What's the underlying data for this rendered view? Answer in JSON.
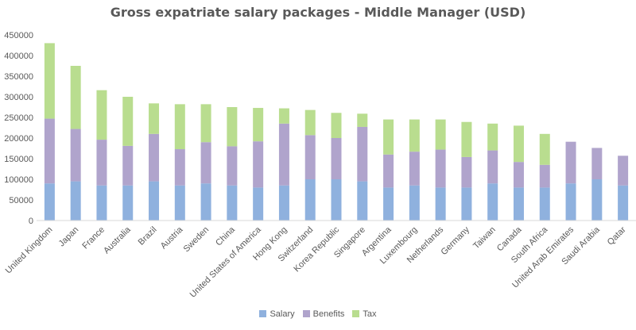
{
  "chart_data": {
    "type": "bar",
    "stacked": true,
    "title": "Gross expatriate salary packages - Middle Manager (USD)",
    "xlabel": "",
    "ylabel": "",
    "ylim": [
      0,
      450000
    ],
    "ytick_step": 50000,
    "grid": false,
    "legend_position": "bottom",
    "categories": [
      "United Kingdom",
      "Japan",
      "France",
      "Australia",
      "Brazil",
      "Austria",
      "Sweden",
      "China",
      "United States of America",
      "Hong Kong",
      "Switzerland",
      "Korea Republic",
      "Singapore",
      "Argentina",
      "Luxembourg",
      "Netherlands",
      "Germany",
      "Taiwan",
      "Canada",
      "South Africa",
      "United Arab Emirates",
      "Saudi Arabia",
      "Qatar"
    ],
    "series": [
      {
        "name": "Salary",
        "color": "#8FB1DE",
        "values": [
          90000,
          95000,
          85000,
          85000,
          95000,
          85000,
          90000,
          85000,
          80000,
          85000,
          100000,
          100000,
          95000,
          80000,
          85000,
          80000,
          80000,
          90000,
          80000,
          80000,
          90000,
          100000,
          85000
        ]
      },
      {
        "name": "Benefits",
        "color": "#B0A4CC",
        "values": [
          157000,
          127000,
          111000,
          96000,
          115000,
          88000,
          100000,
          95000,
          112000,
          150000,
          107000,
          100000,
          132000,
          80000,
          82000,
          92000,
          74000,
          80000,
          62000,
          55000,
          101000,
          76000,
          72000
        ]
      },
      {
        "name": "Tax",
        "color": "#B9DD8F",
        "values": [
          183000,
          153000,
          120000,
          119000,
          74000,
          109000,
          92000,
          95000,
          81000,
          37000,
          61000,
          61000,
          32000,
          85000,
          78000,
          73000,
          85000,
          65000,
          88000,
          75000,
          0,
          0,
          0
        ]
      }
    ]
  }
}
